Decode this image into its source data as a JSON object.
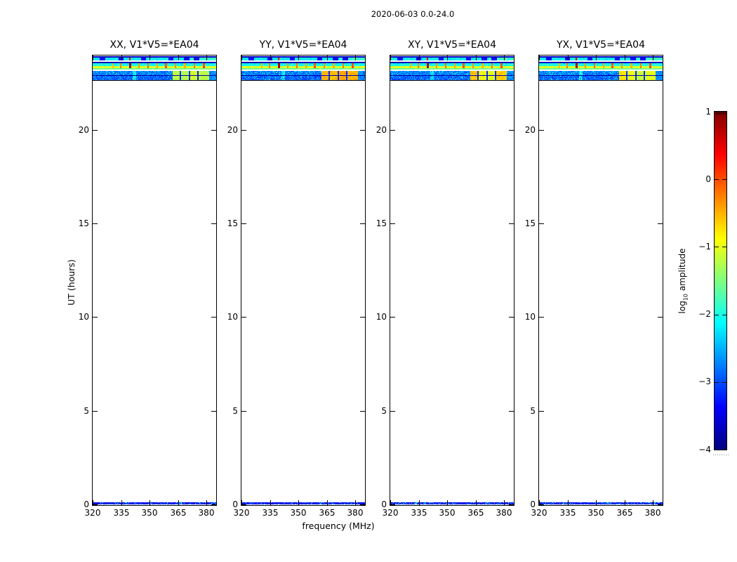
{
  "figure": {
    "title": "2020-06-03 0.0-24.0",
    "background": "#ffffff"
  },
  "axes": {
    "xlabel": "frequency (MHz)",
    "ylabel": "UT (hours)"
  },
  "colorbar": {
    "label_pre": "log",
    "label_sub": "10",
    "label_post": " amplitude",
    "ticks": [
      1,
      0,
      -1,
      -2,
      -3,
      -4
    ],
    "tick_labels": [
      "1",
      "0",
      "−1",
      "−2",
      "−3",
      "−4"
    ],
    "vmin": -4,
    "vmax": 1,
    "colormap": "jet"
  },
  "chart_data": {
    "type": "heatmap",
    "title": "2020-06-03 0.0-24.0",
    "xlabel": "frequency (MHz)",
    "ylabel": "UT (hours)",
    "xlim": [
      320,
      385.5
    ],
    "ylim": [
      0,
      24
    ],
    "x_ticks": [
      320,
      335,
      350,
      365,
      380
    ],
    "x_tick_labels": [
      "320",
      "335",
      "350",
      "365",
      "380"
    ],
    "y_ticks": [
      0,
      5,
      10,
      15,
      20
    ],
    "y_tick_labels": [
      "0",
      "5",
      "10",
      "15",
      "20"
    ],
    "value_scale": "log10 amplitude, jet colormap, -4 (dark blue) to 1 (dark red)",
    "panels": [
      {
        "id": "XX",
        "title": "XX, V1*V5=*EA04",
        "hot_values": [
          -1.2,
          -1.25,
          -1.1,
          -1.2
        ],
        "seed": 101
      },
      {
        "id": "YY",
        "title": "YY, V1*V5=*EA04",
        "hot_values": [
          -0.5,
          -0.55,
          -0.45,
          -0.5
        ],
        "seed": 202
      },
      {
        "id": "XY",
        "title": "XY, V1*V5=*EA04",
        "hot_values": [
          -0.55,
          -0.9,
          -1.0,
          -0.65
        ],
        "seed": 303
      },
      {
        "id": "YX",
        "title": "YX, V1*V5=*EA04",
        "hot_values": [
          -0.75,
          -0.95,
          -1.15,
          -1.0
        ],
        "seed": 404
      }
    ],
    "coverage": {
      "top_strip_ut_hours": [
        22.7,
        24.0
      ],
      "bottom_strip_ut_hours": [
        0.0,
        0.1
      ],
      "note": "spectrogram data only near UT 0h and UT 22.7-24h; the rest of the day is blank"
    },
    "strip_rows": [
      {
        "h": 2.5,
        "kind": "dark",
        "base": -3.7,
        "noise": 0.25
      },
      {
        "h": 4.0,
        "kind": "patchy",
        "base": -2.15,
        "noise": 0.3
      },
      {
        "h": 1.5,
        "kind": "white"
      },
      {
        "h": 2.5,
        "kind": "dark",
        "base": -3.7,
        "noise": 0.3
      },
      {
        "h": 2.5,
        "kind": "spikes",
        "base": -2.05,
        "noise": 0.3,
        "gain": 0.85
      },
      {
        "h": 1.5,
        "kind": "spikes",
        "base": -2.0,
        "noise": 0.2,
        "gain": 0.6
      },
      {
        "h": 3.0,
        "kind": "spikes",
        "base": -1.05,
        "noise": 0.2,
        "gain": 1.0
      },
      {
        "h": 2.0,
        "kind": "plain",
        "base": -1.55,
        "noise": 0.2
      },
      {
        "h": 1.5,
        "kind": "white"
      },
      {
        "h": 6.5,
        "kind": "band",
        "base": -2.75,
        "noise": 0.4
      },
      {
        "h": 1.0,
        "kind": "dark",
        "base": -3.8,
        "noise": 0.1
      },
      {
        "h": 5.5,
        "kind": "band",
        "base": -2.9,
        "noise": 0.4
      },
      {
        "h": 1.5,
        "kind": "black"
      }
    ],
    "rfi_spikes": [
      {
        "f": 330.5,
        "v": -0.55
      },
      {
        "f": 334.5,
        "v": -0.2
      },
      {
        "f": 339.5,
        "v": 0.9
      },
      {
        "f": 344.2,
        "v": -0.35
      },
      {
        "f": 349.0,
        "v": -0.1
      },
      {
        "f": 354.0,
        "v": -0.45
      },
      {
        "f": 358.5,
        "v": 0.05
      },
      {
        "f": 363.5,
        "v": -0.3
      },
      {
        "f": 368.5,
        "v": -0.5
      },
      {
        "f": 373.5,
        "v": -0.15
      },
      {
        "f": 378.5,
        "v": 0.1
      }
    ],
    "dark_patches": [
      [
        323.5,
        326.5
      ],
      [
        333.5,
        336.0
      ],
      [
        345.5,
        348.0
      ],
      [
        360.0,
        362.5
      ],
      [
        368.0,
        371.0
      ]
    ],
    "hot_section": {
      "start_mhz": 362,
      "blocks_mhz": [
        [
          362.0,
          365.65
        ],
        [
          366.35,
          370.65
        ],
        [
          371.35,
          375.15
        ],
        [
          375.85,
          381.2
        ]
      ],
      "gap_value": -3.15,
      "tail_from_mhz": 381.2,
      "tail_value": -2.7
    },
    "bottom_strip": {
      "base": -3.4,
      "noise": 0.3,
      "speckle_chance": 0.15,
      "speckle_value": -2.25
    }
  }
}
